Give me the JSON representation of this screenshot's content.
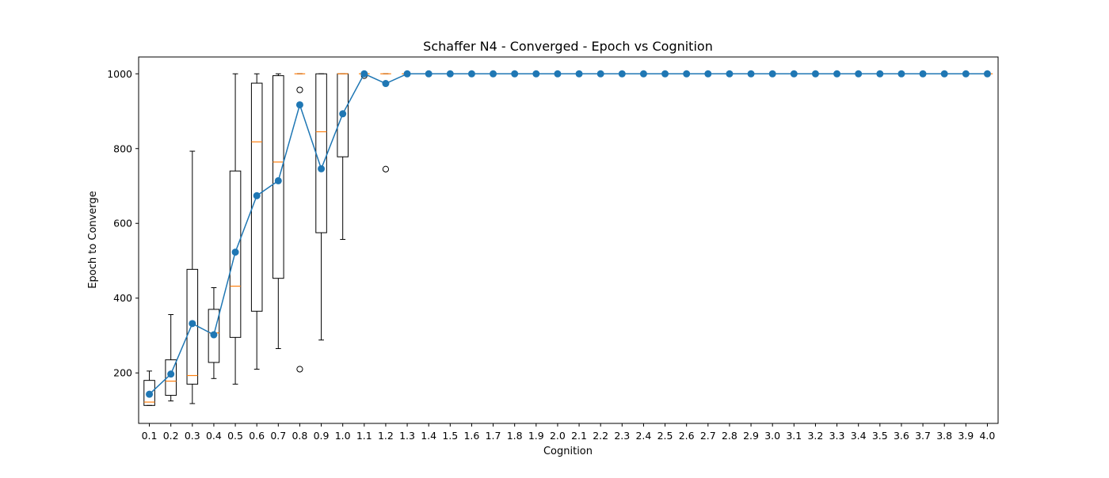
{
  "chart_data": {
    "type": "box",
    "title": "Schaffer N4 - Converged - Epoch vs Cognition",
    "xlabel": "Cognition",
    "ylabel": "Epoch to Converge",
    "categories": [
      "0.1",
      "0.2",
      "0.3",
      "0.4",
      "0.5",
      "0.6",
      "0.7",
      "0.8",
      "0.9",
      "1.0",
      "1.1",
      "1.2",
      "1.3",
      "1.4",
      "1.5",
      "1.6",
      "1.7",
      "1.8",
      "1.9",
      "2.0",
      "2.1",
      "2.2",
      "2.3",
      "2.4",
      "2.5",
      "2.6",
      "2.7",
      "2.8",
      "2.9",
      "3.0",
      "3.1",
      "3.2",
      "3.3",
      "3.4",
      "3.5",
      "3.6",
      "3.7",
      "3.8",
      "3.9",
      "4.0"
    ],
    "ylim": [
      65,
      1045
    ],
    "yticks": [
      200,
      400,
      600,
      800,
      1000
    ],
    "grid": false,
    "colors": {
      "box": "#000000",
      "median": "#ff7f0e",
      "mean_series": "#1f77b4",
      "flier": "#000000"
    },
    "boxes": [
      {
        "whislo": 113,
        "q1": 113,
        "med": 122,
        "q3": 180,
        "whishi": 205,
        "fliers": []
      },
      {
        "whislo": 125,
        "q1": 140,
        "med": 178,
        "q3": 235,
        "whishi": 356,
        "fliers": []
      },
      {
        "whislo": 118,
        "q1": 170,
        "med": 193,
        "q3": 477,
        "whishi": 793,
        "fliers": []
      },
      {
        "whislo": 185,
        "q1": 228,
        "med": 307,
        "q3": 370,
        "whishi": 428,
        "fliers": []
      },
      {
        "whislo": 170,
        "q1": 295,
        "med": 432,
        "q3": 740,
        "whishi": 1000,
        "fliers": []
      },
      {
        "whislo": 210,
        "q1": 365,
        "med": 818,
        "q3": 975,
        "whishi": 1000,
        "fliers": []
      },
      {
        "whislo": 265,
        "q1": 453,
        "med": 764,
        "q3": 995,
        "whishi": 1000,
        "fliers": []
      },
      {
        "whislo": 1000,
        "q1": 1000,
        "med": 1000,
        "q3": 1000,
        "whishi": 1000,
        "fliers": [
          957,
          210
        ]
      },
      {
        "whislo": 288,
        "q1": 575,
        "med": 845,
        "q3": 1000,
        "whishi": 1000,
        "fliers": []
      },
      {
        "whislo": 557,
        "q1": 778,
        "med": 1000,
        "q3": 1000,
        "whishi": 1000,
        "fliers": []
      },
      {
        "whislo": 1000,
        "q1": 1000,
        "med": 1000,
        "q3": 1000,
        "whishi": 1000,
        "fliers": [
          1000,
          995
        ]
      },
      {
        "whislo": 1000,
        "q1": 1000,
        "med": 1000,
        "q3": 1000,
        "whishi": 1000,
        "fliers": [
          745
        ]
      },
      {
        "whislo": 1000,
        "q1": 1000,
        "med": 1000,
        "q3": 1000,
        "whishi": 1000,
        "fliers": []
      },
      {
        "whislo": 1000,
        "q1": 1000,
        "med": 1000,
        "q3": 1000,
        "whishi": 1000,
        "fliers": []
      },
      {
        "whislo": 1000,
        "q1": 1000,
        "med": 1000,
        "q3": 1000,
        "whishi": 1000,
        "fliers": []
      },
      {
        "whislo": 1000,
        "q1": 1000,
        "med": 1000,
        "q3": 1000,
        "whishi": 1000,
        "fliers": []
      },
      {
        "whislo": 1000,
        "q1": 1000,
        "med": 1000,
        "q3": 1000,
        "whishi": 1000,
        "fliers": []
      },
      {
        "whislo": 1000,
        "q1": 1000,
        "med": 1000,
        "q3": 1000,
        "whishi": 1000,
        "fliers": []
      },
      {
        "whislo": 1000,
        "q1": 1000,
        "med": 1000,
        "q3": 1000,
        "whishi": 1000,
        "fliers": []
      },
      {
        "whislo": 1000,
        "q1": 1000,
        "med": 1000,
        "q3": 1000,
        "whishi": 1000,
        "fliers": []
      },
      {
        "whislo": 1000,
        "q1": 1000,
        "med": 1000,
        "q3": 1000,
        "whishi": 1000,
        "fliers": []
      },
      {
        "whislo": 1000,
        "q1": 1000,
        "med": 1000,
        "q3": 1000,
        "whishi": 1000,
        "fliers": []
      },
      {
        "whislo": 1000,
        "q1": 1000,
        "med": 1000,
        "q3": 1000,
        "whishi": 1000,
        "fliers": []
      },
      {
        "whislo": 1000,
        "q1": 1000,
        "med": 1000,
        "q3": 1000,
        "whishi": 1000,
        "fliers": []
      },
      {
        "whislo": 1000,
        "q1": 1000,
        "med": 1000,
        "q3": 1000,
        "whishi": 1000,
        "fliers": []
      },
      {
        "whislo": 1000,
        "q1": 1000,
        "med": 1000,
        "q3": 1000,
        "whishi": 1000,
        "fliers": []
      },
      {
        "whislo": 1000,
        "q1": 1000,
        "med": 1000,
        "q3": 1000,
        "whishi": 1000,
        "fliers": []
      },
      {
        "whislo": 1000,
        "q1": 1000,
        "med": 1000,
        "q3": 1000,
        "whishi": 1000,
        "fliers": []
      },
      {
        "whislo": 1000,
        "q1": 1000,
        "med": 1000,
        "q3": 1000,
        "whishi": 1000,
        "fliers": []
      },
      {
        "whislo": 1000,
        "q1": 1000,
        "med": 1000,
        "q3": 1000,
        "whishi": 1000,
        "fliers": []
      },
      {
        "whislo": 1000,
        "q1": 1000,
        "med": 1000,
        "q3": 1000,
        "whishi": 1000,
        "fliers": []
      },
      {
        "whislo": 1000,
        "q1": 1000,
        "med": 1000,
        "q3": 1000,
        "whishi": 1000,
        "fliers": []
      },
      {
        "whislo": 1000,
        "q1": 1000,
        "med": 1000,
        "q3": 1000,
        "whishi": 1000,
        "fliers": []
      },
      {
        "whislo": 1000,
        "q1": 1000,
        "med": 1000,
        "q3": 1000,
        "whishi": 1000,
        "fliers": []
      },
      {
        "whislo": 1000,
        "q1": 1000,
        "med": 1000,
        "q3": 1000,
        "whishi": 1000,
        "fliers": []
      },
      {
        "whislo": 1000,
        "q1": 1000,
        "med": 1000,
        "q3": 1000,
        "whishi": 1000,
        "fliers": []
      },
      {
        "whislo": 1000,
        "q1": 1000,
        "med": 1000,
        "q3": 1000,
        "whishi": 1000,
        "fliers": []
      },
      {
        "whislo": 1000,
        "q1": 1000,
        "med": 1000,
        "q3": 1000,
        "whishi": 1000,
        "fliers": []
      },
      {
        "whislo": 1000,
        "q1": 1000,
        "med": 1000,
        "q3": 1000,
        "whishi": 1000,
        "fliers": []
      },
      {
        "whislo": 1000,
        "q1": 1000,
        "med": 1000,
        "q3": 1000,
        "whishi": 1000,
        "fliers": []
      }
    ],
    "series": [
      {
        "values": [
          143,
          197,
          332,
          302,
          523,
          674,
          714,
          917,
          746,
          893,
          1000,
          974,
          1000,
          1000,
          1000,
          1000,
          1000,
          1000,
          1000,
          1000,
          1000,
          1000,
          1000,
          1000,
          1000,
          1000,
          1000,
          1000,
          1000,
          1000,
          1000,
          1000,
          1000,
          1000,
          1000,
          1000,
          1000,
          1000,
          1000,
          1000
        ]
      }
    ]
  }
}
